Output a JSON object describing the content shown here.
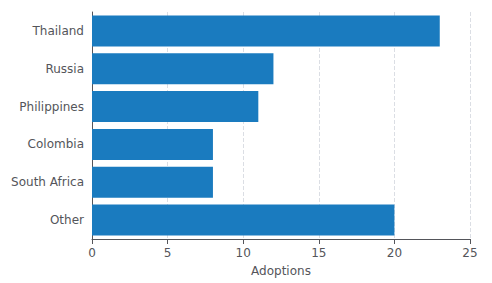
{
  "chart_data": {
    "type": "bar",
    "orientation": "horizontal",
    "categories": [
      "Other",
      "South Africa",
      "Colombia",
      "Philippines",
      "Russia",
      "Thailand"
    ],
    "values": [
      20,
      8,
      8,
      11,
      12,
      23
    ],
    "color": "#1a7bbf",
    "xlabel": "Adoptions",
    "xlim": [
      0,
      25
    ],
    "xticks": [
      0,
      5,
      10,
      15,
      20,
      25
    ],
    "grid": true
  }
}
